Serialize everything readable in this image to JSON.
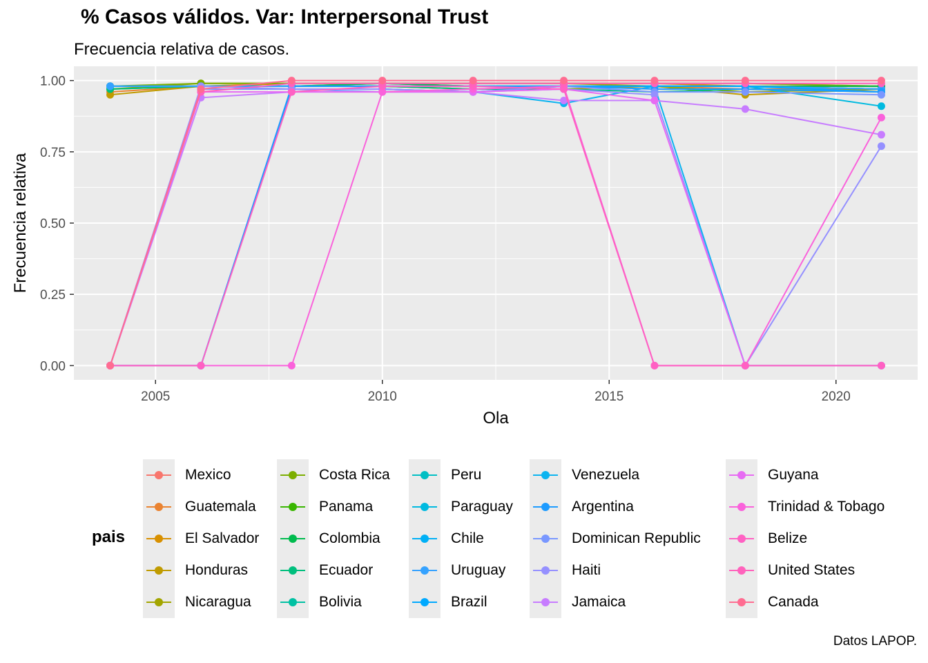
{
  "title": " % Casos válidos. Var: Interpersonal Trust",
  "subtitle": "Frecuencia relativa de casos.",
  "caption": "Datos LAPOP.",
  "legend_title": "pais",
  "chart_data": {
    "type": "line",
    "xlabel": "Ola",
    "ylabel": "Frecuencia relativa",
    "xlim": [
      2003.2,
      2021.8
    ],
    "ylim": [
      -0.05,
      1.05
    ],
    "x_ticks": [
      2005,
      2010,
      2015,
      2020
    ],
    "x_tick_labels": [
      "2005",
      "2010",
      "2015",
      "2020"
    ],
    "y_ticks": [
      0,
      0.25,
      0.5,
      0.75,
      1.0
    ],
    "y_tick_labels": [
      "0.00",
      "0.25",
      "0.50",
      "0.75",
      "1.00"
    ],
    "grid": true,
    "legend_position": "bottom",
    "x": [
      2004,
      2006,
      2008,
      2010,
      2012,
      2014,
      2016,
      2018,
      2021
    ],
    "series": [
      {
        "name": "Mexico",
        "color": "#F8766D",
        "values": [
          0.98,
          0.98,
          0.99,
          0.99,
          0.99,
          0.99,
          0.99,
          0.99,
          0.98
        ]
      },
      {
        "name": "Guatemala",
        "color": "#EA8331",
        "values": [
          0.96,
          0.98,
          0.98,
          0.98,
          0.97,
          0.98,
          0.98,
          0.97,
          0.97
        ]
      },
      {
        "name": "El Salvador",
        "color": "#D89000",
        "values": [
          0.98,
          0.98,
          0.99,
          0.99,
          0.99,
          0.99,
          0.99,
          0.98,
          0.98
        ]
      },
      {
        "name": "Honduras",
        "color": "#C09B00",
        "values": [
          0.95,
          0.98,
          0.98,
          0.98,
          0.97,
          0.97,
          0.98,
          0.95,
          0.97
        ]
      },
      {
        "name": "Nicaragua",
        "color": "#A3A500",
        "values": [
          0.97,
          0.99,
          0.99,
          0.99,
          0.99,
          0.99,
          0.98,
          0.96,
          0.97
        ]
      },
      {
        "name": "Costa Rica",
        "color": "#7CAE00",
        "values": [
          0.98,
          0.99,
          0.99,
          0.99,
          0.99,
          0.99,
          0.99,
          0.99,
          0.98
        ]
      },
      {
        "name": "Panama",
        "color": "#39B600",
        "values": [
          0.97,
          0.98,
          0.98,
          0.99,
          0.98,
          0.98,
          0.98,
          0.98,
          0.97
        ]
      },
      {
        "name": "Colombia",
        "color": "#00BB4E",
        "values": [
          0.98,
          0.98,
          0.98,
          0.99,
          0.98,
          0.98,
          0.98,
          0.98,
          0.98
        ]
      },
      {
        "name": "Ecuador",
        "color": "#00BF7D",
        "values": [
          0.97,
          0.98,
          0.98,
          0.98,
          0.97,
          0.97,
          0.96,
          0.97,
          0.96
        ]
      },
      {
        "name": "Bolivia",
        "color": "#00C1A3",
        "values": [
          0.98,
          0.98,
          0.98,
          0.98,
          0.98,
          0.98,
          0.98,
          0.98,
          0.97
        ]
      },
      {
        "name": "Peru",
        "color": "#00BFC4",
        "values": [
          0.98,
          0.98,
          0.98,
          0.98,
          0.98,
          0.98,
          0.98,
          0.98,
          0.97
        ]
      },
      {
        "name": "Paraguay",
        "color": "#00BAE0",
        "values": [
          0.98,
          0.98,
          0.98,
          0.98,
          0.98,
          0.98,
          0.98,
          0.98,
          0.91
        ]
      },
      {
        "name": "Chile",
        "color": "#00B0F6",
        "values": [
          0.98,
          0.98,
          0.98,
          0.98,
          0.98,
          0.98,
          0.98,
          0.98,
          0.97
        ]
      },
      {
        "name": "Uruguay",
        "color": "#35A2FF",
        "values": [
          0.98,
          0.98,
          0.98,
          0.98,
          0.98,
          0.98,
          0.98,
          0.98,
          0.97
        ]
      },
      {
        "name": "Brazil",
        "color": "#00A9FF",
        "values": [
          0,
          0.97,
          0.97,
          0.97,
          0.96,
          0.98,
          0.98,
          0.98,
          0.96
        ]
      },
      {
        "name": "Venezuela",
        "color": "#0CB4F0",
        "values": [
          0,
          0,
          0.97,
          0.97,
          0.96,
          0.92,
          0.98,
          0,
          0
        ]
      },
      {
        "name": "Argentina",
        "color": "#1D9BFF",
        "values": [
          0,
          0,
          0.98,
          0.98,
          0.98,
          0.98,
          0.97,
          0.97,
          0.96
        ]
      },
      {
        "name": "Dominican Republic",
        "color": "#7997FF",
        "values": [
          0,
          0.97,
          0.97,
          0.96,
          0.96,
          0.98,
          0.96,
          0.96,
          0.95
        ]
      },
      {
        "name": "Haiti",
        "color": "#9590FF",
        "values": [
          0,
          0.98,
          0.97,
          0.97,
          0.96,
          0.97,
          0.95,
          0,
          0.77
        ]
      },
      {
        "name": "Jamaica",
        "color": "#C77CFF",
        "values": [
          0,
          0.94,
          0.96,
          0.96,
          0.96,
          0.93,
          0.93,
          0.9,
          0.81
        ]
      },
      {
        "name": "Guyana",
        "color": "#E76BF3",
        "values": [
          0,
          0.96,
          0.96,
          0.96,
          0.96,
          0.97,
          0.93,
          0,
          0
        ]
      },
      {
        "name": "Trinidad & Tobago",
        "color": "#FA62DB",
        "values": [
          0,
          0,
          0,
          0.96,
          0.97,
          0.98,
          0,
          0,
          0.87
        ]
      },
      {
        "name": "Belize",
        "color": "#FF61C3",
        "values": [
          0,
          0,
          0.96,
          0.98,
          0.98,
          0.97,
          0,
          0,
          0
        ]
      },
      {
        "name": "United States",
        "color": "#FF62BC",
        "values": [
          0,
          0.96,
          0.99,
          0.99,
          0.99,
          0.99,
          0.99,
          0.99,
          0.99
        ]
      },
      {
        "name": "Canada",
        "color": "#FF6C91",
        "values": [
          0,
          0.97,
          1.0,
          1.0,
          1.0,
          1.0,
          1.0,
          1.0,
          1.0
        ]
      }
    ]
  }
}
